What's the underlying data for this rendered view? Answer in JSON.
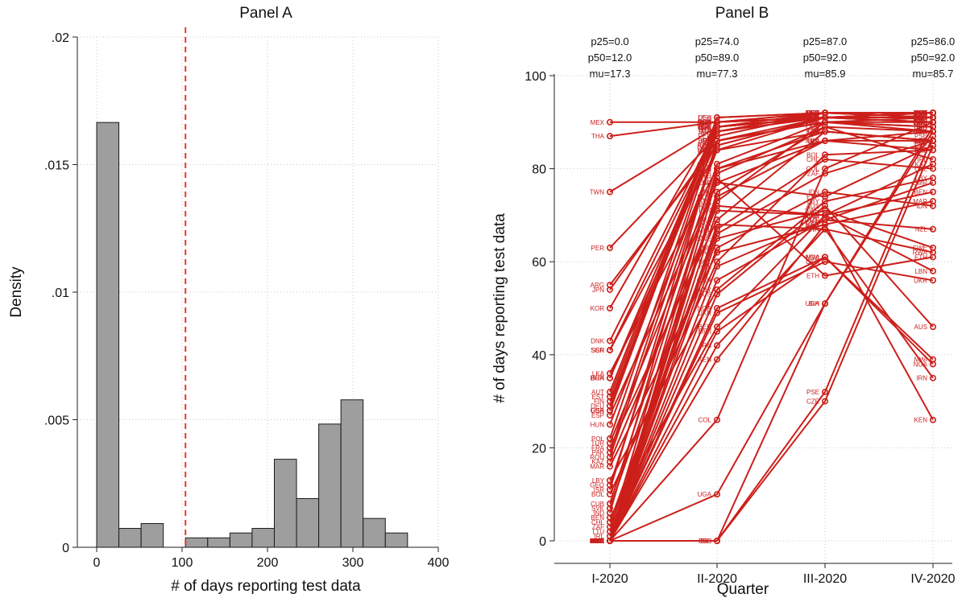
{
  "chart_data": [
    {
      "type": "bar",
      "title": "Panel A",
      "xlabel": "# of days reporting test data",
      "ylabel": "Density",
      "xlim": [
        0,
        400
      ],
      "ylim": [
        0,
        0.02
      ],
      "xticks": [
        0,
        100,
        200,
        300,
        400
      ],
      "xtick_labels": [
        "0",
        "100",
        "200",
        "300",
        "400"
      ],
      "yticks": [
        0,
        0.005,
        0.01,
        0.015,
        0.02
      ],
      "ytick_labels": [
        "0",
        ".005",
        ".01",
        ".015",
        ".02"
      ],
      "bins": [
        {
          "start": 0,
          "end": 26,
          "density": 0.01665
        },
        {
          "start": 26,
          "end": 52,
          "density": 0.00074
        },
        {
          "start": 52,
          "end": 78,
          "density": 0.00093
        },
        {
          "start": 78,
          "end": 104,
          "density": 0.0
        },
        {
          "start": 104,
          "end": 130,
          "density": 0.00037
        },
        {
          "start": 130,
          "end": 156,
          "density": 0.00037
        },
        {
          "start": 156,
          "end": 182,
          "density": 0.00056
        },
        {
          "start": 182,
          "end": 208,
          "density": 0.00074
        },
        {
          "start": 208,
          "end": 234,
          "density": 0.00345
        },
        {
          "start": 234,
          "end": 260,
          "density": 0.00191
        },
        {
          "start": 260,
          "end": 286,
          "density": 0.00483
        },
        {
          "start": 286,
          "end": 312,
          "density": 0.00578
        },
        {
          "start": 312,
          "end": 338,
          "density": 0.00113
        },
        {
          "start": 338,
          "end": 364,
          "density": 0.00056
        }
      ],
      "reference_line_x": 104,
      "grid": true,
      "colors": {
        "bar": "#9e9e9e",
        "bar_edge": "#1a1a1a",
        "reference": "#e8382f",
        "grid": "#c8c8c8"
      }
    },
    {
      "type": "line",
      "title": "Panel B",
      "xlabel": "Quarter",
      "ylabel": "# of days reporting test data",
      "categories": [
        "I-2020",
        "II-2020",
        "III-2020",
        "IV-2020"
      ],
      "ylim": [
        0,
        100
      ],
      "yticks": [
        0,
        20,
        40,
        60,
        80,
        100
      ],
      "ytick_labels": [
        "0",
        "20",
        "40",
        "60",
        "80",
        "100"
      ],
      "quarter_stats": [
        [
          "p25=0.0",
          "p50=12.0",
          "mu=17.3"
        ],
        [
          "p25=74.0",
          "p50=89.0",
          "mu=77.3"
        ],
        [
          "p25=87.0",
          "p50=92.0",
          "mu=85.9"
        ],
        [
          "p25=86.0",
          "p50=92.0",
          "mu=85.7"
        ]
      ],
      "series": [
        {
          "name": "MEX",
          "values": [
            90,
            90,
            91,
            91
          ]
        },
        {
          "name": "THA",
          "values": [
            87,
            90,
            91,
            92
          ]
        },
        {
          "name": "TWN",
          "values": [
            75,
            89,
            91,
            91
          ]
        },
        {
          "name": "PER",
          "values": [
            63,
            87,
            92,
            91
          ]
        },
        {
          "name": "ARG",
          "values": [
            55,
            85,
            91,
            91
          ]
        },
        {
          "name": "JPN",
          "values": [
            54,
            86,
            90,
            91
          ]
        },
        {
          "name": "KOR",
          "values": [
            50,
            90,
            92,
            92
          ]
        },
        {
          "name": "DNK",
          "values": [
            43,
            89,
            91,
            90
          ]
        },
        {
          "name": "SGP",
          "values": [
            41,
            88,
            92,
            91
          ]
        },
        {
          "name": "SEN",
          "values": [
            41,
            84,
            88,
            86
          ]
        },
        {
          "name": "LKA",
          "values": [
            36,
            80,
            86,
            84
          ]
        },
        {
          "name": "BGR",
          "values": [
            35,
            89,
            91,
            91
          ]
        },
        {
          "name": "BRA",
          "values": [
            35,
            86,
            90,
            89
          ]
        },
        {
          "name": "AUT",
          "values": [
            32,
            90,
            91,
            92
          ]
        },
        {
          "name": "EST",
          "values": [
            31,
            89,
            92,
            91
          ]
        },
        {
          "name": "FIN",
          "values": [
            30,
            88,
            91,
            91
          ]
        },
        {
          "name": "DEU",
          "values": [
            29,
            91,
            92,
            92
          ]
        },
        {
          "name": "GBR",
          "values": [
            28,
            90,
            92,
            92
          ]
        },
        {
          "name": "USA",
          "values": [
            28,
            91,
            92,
            92
          ]
        },
        {
          "name": "ESP",
          "values": [
            27,
            77,
            74,
            85
          ]
        },
        {
          "name": "HUN",
          "values": [
            25,
            84,
            91,
            90
          ]
        },
        {
          "name": "POL",
          "values": [
            22,
            89,
            91,
            92
          ]
        },
        {
          "name": "TUR",
          "values": [
            21,
            77,
            86,
            88
          ]
        },
        {
          "name": "FRA",
          "values": [
            20,
            69,
            88,
            86
          ]
        },
        {
          "name": "PAK",
          "values": [
            19,
            88,
            91,
            92
          ]
        },
        {
          "name": "ROU",
          "values": [
            18,
            85,
            91,
            90
          ]
        },
        {
          "name": "KAZ",
          "values": [
            17,
            72,
            70,
            81
          ]
        },
        {
          "name": "MAR",
          "values": [
            16,
            62,
            68,
            73
          ]
        },
        {
          "name": "LBY",
          "values": [
            13,
            54,
            73,
            78
          ]
        },
        {
          "name": "GEO",
          "values": [
            12,
            81,
            90,
            88
          ]
        },
        {
          "name": "ISR",
          "values": [
            11,
            86,
            90,
            89
          ]
        },
        {
          "name": "BOL",
          "values": [
            10,
            60,
            83,
            84
          ]
        },
        {
          "name": "CUB",
          "values": [
            8,
            79,
            89,
            88
          ]
        },
        {
          "name": "SVK",
          "values": [
            7,
            73,
            90,
            90
          ]
        },
        {
          "name": "IND",
          "values": [
            6,
            86,
            91,
            91
          ]
        },
        {
          "name": "BEN",
          "values": [
            5,
            46,
            70,
            75
          ]
        },
        {
          "name": "CHL",
          "values": [
            4,
            67,
            82,
            80
          ]
        },
        {
          "name": "ZAF",
          "values": [
            3,
            66,
            79,
            86
          ]
        },
        {
          "name": "LTU",
          "values": [
            2,
            80,
            88,
            86
          ]
        },
        {
          "name": "IRL",
          "values": [
            1,
            75,
            89,
            82
          ]
        },
        {
          "name": "NOR",
          "values": [
            0,
            74,
            86,
            86
          ]
        },
        {
          "name": "SWE",
          "values": [
            0,
            65,
            71,
            63
          ]
        },
        {
          "name": "AUS",
          "values": [
            0,
            53,
            72,
            46
          ]
        },
        {
          "name": "NZL",
          "values": [
            0,
            59,
            69,
            67
          ]
        },
        {
          "name": "UKR",
          "values": [
            0,
            49,
            60,
            56
          ]
        },
        {
          "name": "IRN",
          "values": [
            0,
            42,
            67,
            35
          ]
        },
        {
          "name": "KEN",
          "values": [
            0,
            39,
            68,
            26
          ]
        },
        {
          "name": "IDN",
          "values": [
            0,
            63,
            75,
            72
          ]
        },
        {
          "name": "CMR",
          "values": [
            0,
            56,
            69,
            77
          ]
        },
        {
          "name": "MWI",
          "values": [
            0,
            45,
            61,
            39
          ]
        },
        {
          "name": "NGA",
          "values": [
            0,
            50,
            61,
            38
          ]
        },
        {
          "name": "RWA",
          "values": [
            0,
            68,
            67,
            62
          ]
        },
        {
          "name": "LBN",
          "values": [
            0,
            71,
            70,
            58
          ]
        },
        {
          "name": "ETH",
          "values": [
            0,
            78,
            57,
            61
          ]
        },
        {
          "name": "COL",
          "values": [
            0,
            26,
            80,
            90
          ]
        },
        {
          "name": "UGA",
          "values": [
            0,
            10,
            51,
            88
          ]
        },
        {
          "name": "BIH",
          "values": [
            0,
            0,
            51,
            89
          ]
        },
        {
          "name": "PSE",
          "values": [
            0,
            0,
            32,
            87
          ]
        },
        {
          "name": "CZE",
          "values": [
            0,
            0,
            30,
            85
          ]
        }
      ],
      "grid": true,
      "colors": {
        "series": "#cc1f1a",
        "label": "#cc2020",
        "grid": "#c8c8c8"
      }
    }
  ]
}
